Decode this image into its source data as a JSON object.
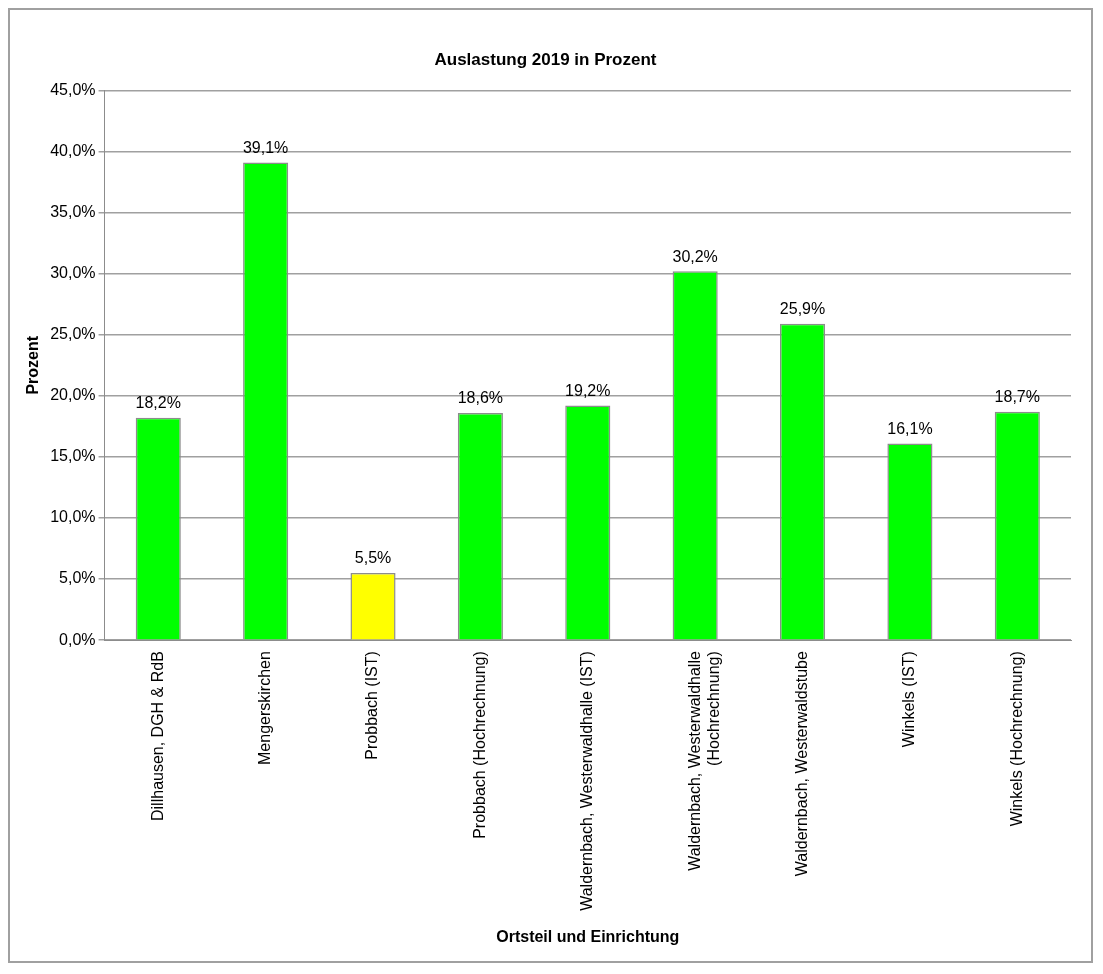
{
  "chart_data": {
    "type": "bar",
    "title": "Auslastung 2019 in Prozent",
    "xlabel": "Ortsteil und Einrichtung",
    "ylabel": "Prozent",
    "categories": [
      "Dillhausen, DGH & RdB",
      "Mengerskirchen",
      "Probbach (IST)",
      "Probbach (Hochrechnung)",
      "Waldernbach, Westerwaldhalle (IST)",
      "Waldernbach, Westerwaldhalle (Hochrechnung)",
      "Waldernbach, Westerwaldstube",
      "Winkels (IST)",
      "Winkels (Hochrechnung)"
    ],
    "values": [
      18.2,
      39.1,
      5.5,
      18.6,
      19.2,
      30.2,
      25.9,
      16.1,
      18.7
    ],
    "colors": [
      "#00ff00",
      "#00ff00",
      "#ffff00",
      "#00ff00",
      "#00ff00",
      "#00ff00",
      "#00ff00",
      "#00ff00",
      "#00ff00"
    ],
    "value_labels": [
      "18,2%",
      "39,1%",
      "5,5%",
      "18,6%",
      "19,2%",
      "30,2%",
      "25,9%",
      "16,1%",
      "18,7%"
    ],
    "ylim": [
      0,
      45
    ],
    "yticks": [
      {
        "value": 0,
        "label": "0,0%"
      },
      {
        "value": 5,
        "label": "5,0%"
      },
      {
        "value": 10,
        "label": "10,0%"
      },
      {
        "value": 15,
        "label": "15,0%"
      },
      {
        "value": 20,
        "label": "20,0%"
      },
      {
        "value": 25,
        "label": "25,0%"
      },
      {
        "value": 30,
        "label": "30,0%"
      },
      {
        "value": 35,
        "label": "35,0%"
      },
      {
        "value": 40,
        "label": "40,0%"
      },
      {
        "value": 45,
        "label": "45,0%"
      }
    ],
    "grid": "y",
    "legend": false
  }
}
